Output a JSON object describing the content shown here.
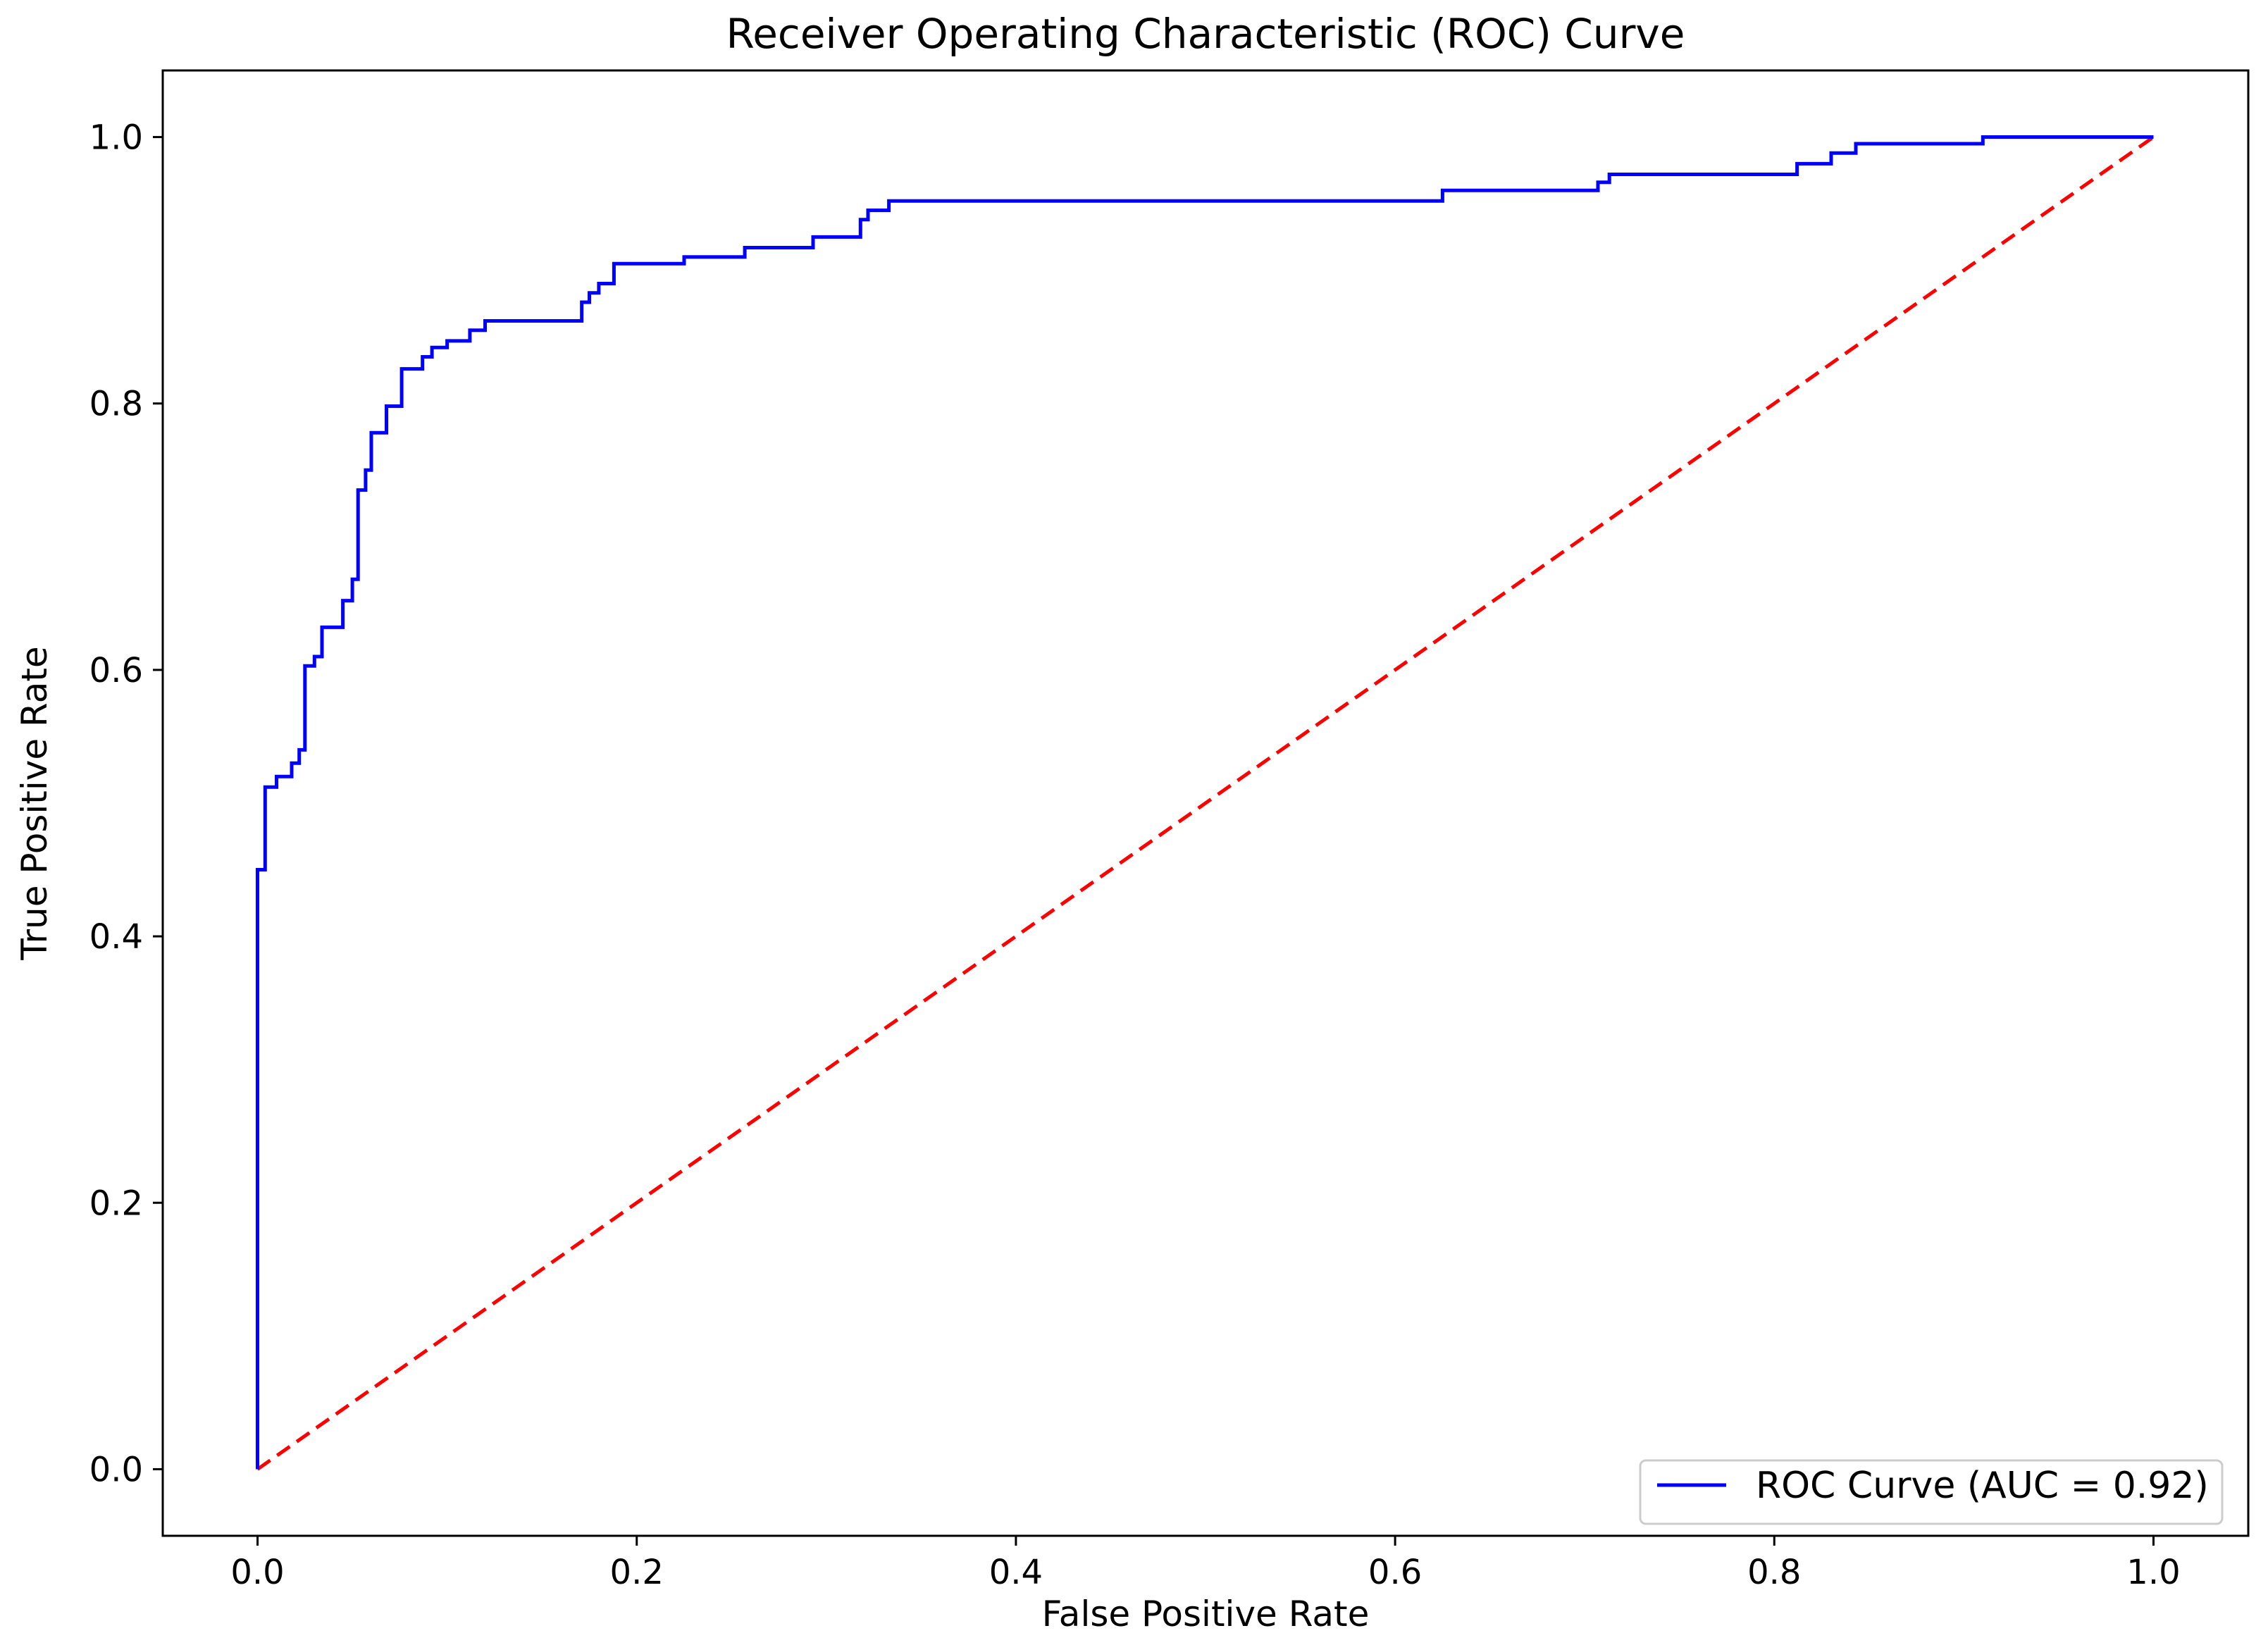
{
  "chart_data": {
    "type": "line",
    "title": "Receiver Operating Characteristic (ROC) Curve",
    "xlabel": "False Positive Rate",
    "ylabel": "True Positive Rate",
    "xlim": [
      -0.05,
      1.05
    ],
    "ylim": [
      -0.05,
      1.05
    ],
    "xticks": [
      0.0,
      0.2,
      0.4,
      0.6,
      0.8,
      1.0
    ],
    "xtick_labels": [
      "0.0",
      "0.2",
      "0.4",
      "0.6",
      "0.8",
      "1.0"
    ],
    "yticks": [
      0.0,
      0.2,
      0.4,
      0.6,
      0.8,
      1.0
    ],
    "ytick_labels": [
      "0.0",
      "0.2",
      "0.4",
      "0.6",
      "0.8",
      "1.0"
    ],
    "grid": false,
    "legend_position": "lower-right",
    "series": [
      {
        "name": "ROC Curve (AUC = 0.92)",
        "color": "#0000ff",
        "line_style": "solid",
        "step": true,
        "points": [
          [
            0.0,
            0.0
          ],
          [
            0.0,
            0.45
          ],
          [
            0.004,
            0.45
          ],
          [
            0.004,
            0.512
          ],
          [
            0.01,
            0.512
          ],
          [
            0.01,
            0.52
          ],
          [
            0.018,
            0.52
          ],
          [
            0.018,
            0.53
          ],
          [
            0.022,
            0.53
          ],
          [
            0.022,
            0.54
          ],
          [
            0.025,
            0.54
          ],
          [
            0.025,
            0.603
          ],
          [
            0.03,
            0.603
          ],
          [
            0.03,
            0.61
          ],
          [
            0.034,
            0.61
          ],
          [
            0.034,
            0.632
          ],
          [
            0.045,
            0.632
          ],
          [
            0.045,
            0.652
          ],
          [
            0.05,
            0.652
          ],
          [
            0.05,
            0.668
          ],
          [
            0.053,
            0.668
          ],
          [
            0.053,
            0.735
          ],
          [
            0.057,
            0.735
          ],
          [
            0.057,
            0.75
          ],
          [
            0.06,
            0.75
          ],
          [
            0.06,
            0.778
          ],
          [
            0.068,
            0.778
          ],
          [
            0.068,
            0.798
          ],
          [
            0.076,
            0.798
          ],
          [
            0.076,
            0.826
          ],
          [
            0.087,
            0.826
          ],
          [
            0.087,
            0.835
          ],
          [
            0.092,
            0.835
          ],
          [
            0.092,
            0.842
          ],
          [
            0.1,
            0.842
          ],
          [
            0.1,
            0.847
          ],
          [
            0.112,
            0.847
          ],
          [
            0.112,
            0.855
          ],
          [
            0.12,
            0.855
          ],
          [
            0.12,
            0.862
          ],
          [
            0.171,
            0.862
          ],
          [
            0.171,
            0.876
          ],
          [
            0.175,
            0.876
          ],
          [
            0.175,
            0.883
          ],
          [
            0.18,
            0.883
          ],
          [
            0.18,
            0.89
          ],
          [
            0.188,
            0.89
          ],
          [
            0.188,
            0.905
          ],
          [
            0.225,
            0.905
          ],
          [
            0.225,
            0.91
          ],
          [
            0.257,
            0.91
          ],
          [
            0.257,
            0.917
          ],
          [
            0.293,
            0.917
          ],
          [
            0.293,
            0.925
          ],
          [
            0.318,
            0.925
          ],
          [
            0.318,
            0.938
          ],
          [
            0.322,
            0.938
          ],
          [
            0.322,
            0.945
          ],
          [
            0.333,
            0.945
          ],
          [
            0.333,
            0.952
          ],
          [
            0.625,
            0.952
          ],
          [
            0.625,
            0.96
          ],
          [
            0.707,
            0.96
          ],
          [
            0.707,
            0.966
          ],
          [
            0.713,
            0.966
          ],
          [
            0.713,
            0.972
          ],
          [
            0.812,
            0.972
          ],
          [
            0.812,
            0.98
          ],
          [
            0.83,
            0.98
          ],
          [
            0.83,
            0.988
          ],
          [
            0.843,
            0.988
          ],
          [
            0.843,
            0.995
          ],
          [
            0.91,
            0.995
          ],
          [
            0.91,
            1.0
          ],
          [
            1.0,
            1.0
          ]
        ]
      },
      {
        "name": "",
        "color": "#ff0000",
        "line_style": "dashed",
        "step": false,
        "points": [
          [
            0.0,
            0.0
          ],
          [
            1.0,
            1.0
          ]
        ]
      }
    ]
  }
}
